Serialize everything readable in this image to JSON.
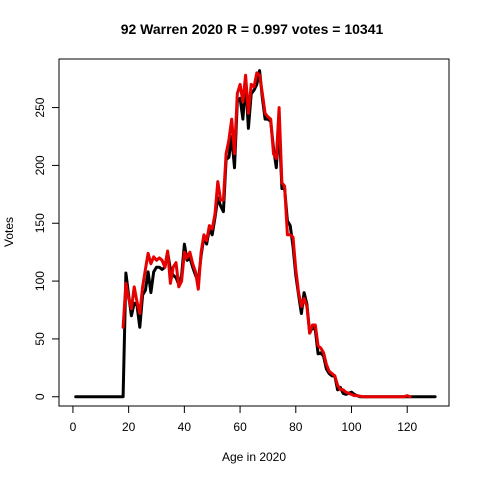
{
  "chart_data": {
    "type": "line",
    "title": "92 Warren 2020 R = 0.997 votes = 10341",
    "xlabel": "Age in 2020",
    "ylabel": "Votes",
    "xlim": [
      -5,
      135
    ],
    "ylim": [
      -8,
      292
    ],
    "x_ticks": [
      0,
      20,
      40,
      60,
      80,
      100,
      120
    ],
    "y_ticks": [
      0,
      50,
      100,
      150,
      200,
      250
    ],
    "grid": false,
    "legend": "none",
    "series": [
      {
        "color": "#000000",
        "points": [
          [
            1,
            0
          ],
          [
            18,
            0
          ],
          [
            19,
            107
          ],
          [
            20,
            88
          ],
          [
            21,
            70
          ],
          [
            22,
            81
          ],
          [
            23,
            79
          ],
          [
            24,
            60
          ],
          [
            25,
            88
          ],
          [
            26,
            92
          ],
          [
            27,
            108
          ],
          [
            28,
            90
          ],
          [
            29,
            108
          ],
          [
            30,
            112
          ],
          [
            31,
            112
          ],
          [
            32,
            110
          ],
          [
            33,
            112
          ],
          [
            34,
            125
          ],
          [
            35,
            110
          ],
          [
            36,
            105
          ],
          [
            37,
            103
          ],
          [
            38,
            97
          ],
          [
            39,
            105
          ],
          [
            40,
            132
          ],
          [
            41,
            118
          ],
          [
            42,
            120
          ],
          [
            43,
            112
          ],
          [
            44,
            105
          ],
          [
            45,
            100
          ],
          [
            46,
            122
          ],
          [
            47,
            138
          ],
          [
            48,
            132
          ],
          [
            49,
            145
          ],
          [
            50,
            140
          ],
          [
            51,
            155
          ],
          [
            52,
            172
          ],
          [
            53,
            165
          ],
          [
            54,
            160
          ],
          [
            55,
            205
          ],
          [
            56,
            207
          ],
          [
            57,
            225
          ],
          [
            58,
            198
          ],
          [
            59,
            255
          ],
          [
            60,
            258
          ],
          [
            61,
            240
          ],
          [
            62,
            273
          ],
          [
            63,
            232
          ],
          [
            64,
            262
          ],
          [
            65,
            265
          ],
          [
            66,
            270
          ],
          [
            67,
            282
          ],
          [
            68,
            258
          ],
          [
            69,
            240
          ],
          [
            70,
            240
          ],
          [
            71,
            238
          ],
          [
            72,
            215
          ],
          [
            73,
            198
          ],
          [
            74,
            235
          ],
          [
            75,
            180
          ],
          [
            76,
            180
          ],
          [
            77,
            152
          ],
          [
            78,
            148
          ],
          [
            79,
            130
          ],
          [
            80,
            105
          ],
          [
            81,
            88
          ],
          [
            82,
            72
          ],
          [
            83,
            90
          ],
          [
            84,
            80
          ],
          [
            85,
            55
          ],
          [
            86,
            60
          ],
          [
            87,
            58
          ],
          [
            88,
            37
          ],
          [
            89,
            38
          ],
          [
            90,
            35
          ],
          [
            91,
            24
          ],
          [
            92,
            20
          ],
          [
            93,
            18
          ],
          [
            94,
            18
          ],
          [
            95,
            6
          ],
          [
            96,
            8
          ],
          [
            97,
            3
          ],
          [
            98,
            2
          ],
          [
            99,
            3
          ],
          [
            100,
            4
          ],
          [
            101,
            2
          ],
          [
            102,
            1
          ],
          [
            103,
            0
          ],
          [
            105,
            0
          ],
          [
            130,
            0
          ]
        ]
      },
      {
        "color": "#e60000",
        "points": [
          [
            18,
            60
          ],
          [
            19,
            98
          ],
          [
            20,
            85
          ],
          [
            21,
            76
          ],
          [
            22,
            95
          ],
          [
            23,
            82
          ],
          [
            24,
            72
          ],
          [
            25,
            95
          ],
          [
            26,
            110
          ],
          [
            27,
            124
          ],
          [
            28,
            115
          ],
          [
            29,
            121
          ],
          [
            30,
            118
          ],
          [
            31,
            120
          ],
          [
            32,
            118
          ],
          [
            33,
            112
          ],
          [
            34,
            126
          ],
          [
            35,
            98
          ],
          [
            36,
            112
          ],
          [
            37,
            116
          ],
          [
            38,
            95
          ],
          [
            39,
            100
          ],
          [
            40,
            125
          ],
          [
            41,
            120
          ],
          [
            42,
            125
          ],
          [
            43,
            115
          ],
          [
            44,
            108
          ],
          [
            45,
            93
          ],
          [
            46,
            125
          ],
          [
            47,
            140
          ],
          [
            48,
            135
          ],
          [
            49,
            148
          ],
          [
            50,
            145
          ],
          [
            51,
            158
          ],
          [
            52,
            186
          ],
          [
            53,
            170
          ],
          [
            54,
            170
          ],
          [
            55,
            210
          ],
          [
            56,
            222
          ],
          [
            57,
            240
          ],
          [
            58,
            210
          ],
          [
            59,
            262
          ],
          [
            60,
            270
          ],
          [
            61,
            255
          ],
          [
            62,
            278
          ],
          [
            63,
            245
          ],
          [
            64,
            270
          ],
          [
            65,
            268
          ],
          [
            66,
            280
          ],
          [
            67,
            278
          ],
          [
            68,
            262
          ],
          [
            69,
            245
          ],
          [
            70,
            242
          ],
          [
            71,
            240
          ],
          [
            72,
            210
          ],
          [
            73,
            206
          ],
          [
            74,
            250
          ],
          [
            75,
            185
          ],
          [
            76,
            182
          ],
          [
            77,
            140
          ],
          [
            78,
            140
          ],
          [
            79,
            138
          ],
          [
            80,
            110
          ],
          [
            81,
            90
          ],
          [
            82,
            78
          ],
          [
            83,
            85
          ],
          [
            84,
            78
          ],
          [
            85,
            55
          ],
          [
            86,
            62
          ],
          [
            87,
            62
          ],
          [
            88,
            44
          ],
          [
            89,
            42
          ],
          [
            90,
            38
          ],
          [
            91,
            28
          ],
          [
            92,
            22
          ],
          [
            93,
            20
          ],
          [
            94,
            18
          ],
          [
            95,
            10
          ],
          [
            96,
            6
          ],
          [
            97,
            6
          ],
          [
            98,
            4
          ],
          [
            99,
            3
          ],
          [
            100,
            2
          ],
          [
            101,
            1
          ],
          [
            102,
            1
          ],
          [
            104,
            0
          ],
          [
            112,
            0
          ],
          [
            119,
            0
          ],
          [
            120,
            1
          ],
          [
            121,
            0
          ]
        ]
      }
    ]
  }
}
